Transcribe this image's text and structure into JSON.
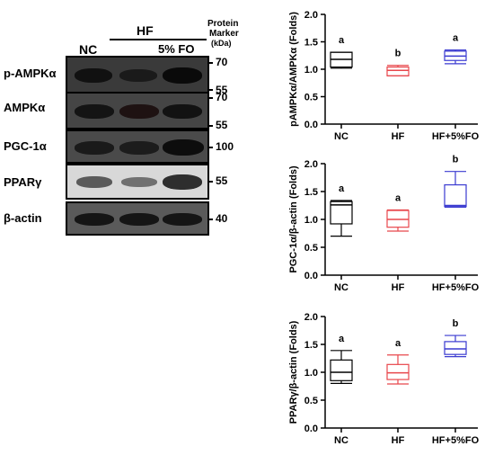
{
  "western_blot": {
    "headers": {
      "nc": "NC",
      "hf": "HF",
      "fo": "5% FO",
      "marker_title_1": "Protein",
      "marker_title_2": "Marker",
      "marker_unit": "(kDa)"
    },
    "rows": [
      {
        "label": "p-AMPKα",
        "markers": [
          "70",
          "55"
        ]
      },
      {
        "label": "AMPKα",
        "markers": [
          "70",
          "55"
        ]
      },
      {
        "label": "PGC-1α",
        "markers": [
          "100"
        ]
      },
      {
        "label": "PPARγ",
        "markers": [
          "55"
        ]
      },
      {
        "label": "β-actin",
        "markers": [
          "40"
        ]
      }
    ]
  },
  "chart_data": [
    {
      "type": "boxplot",
      "ylabel": "pAMPKα/AMPKα (Folds)",
      "ylim": [
        0,
        2.0
      ],
      "yticks": [
        "0.0",
        "0.5",
        "1.0",
        "1.5",
        "2.0"
      ],
      "categories": [
        "NC",
        "HF",
        "HF+5%FO"
      ],
      "colors": [
        "#000000",
        "#e8474c",
        "#3a3ad0"
      ],
      "boxes": [
        {
          "min": 1.02,
          "q1": 1.04,
          "median": 1.18,
          "q3": 1.31,
          "max": 1.31
        },
        {
          "min": 0.88,
          "q1": 0.88,
          "median": 0.98,
          "q3": 1.04,
          "max": 1.07
        },
        {
          "min": 1.1,
          "q1": 1.16,
          "median": 1.24,
          "q3": 1.33,
          "max": 1.35
        }
      ],
      "letters": [
        "a",
        "b",
        "a"
      ]
    },
    {
      "type": "boxplot",
      "ylabel": "PGC-1α/β-actin (Folds)",
      "ylim": [
        0,
        2.0
      ],
      "yticks": [
        "0.0",
        "0.5",
        "1.0",
        "1.5",
        "2.0"
      ],
      "categories": [
        "NC",
        "HF",
        "HF+5%FO"
      ],
      "colors": [
        "#000000",
        "#e8474c",
        "#3a3ad0"
      ],
      "boxes": [
        {
          "min": 0.7,
          "q1": 0.92,
          "median": 1.26,
          "q3": 1.32,
          "max": 1.34
        },
        {
          "min": 0.79,
          "q1": 0.86,
          "median": 1.0,
          "q3": 1.16,
          "max": 1.17
        },
        {
          "min": 1.22,
          "q1": 1.23,
          "median": 1.25,
          "q3": 1.62,
          "max": 1.86
        }
      ],
      "letters": [
        "a",
        "a",
        "b"
      ]
    },
    {
      "type": "boxplot",
      "ylabel": "PPARγ/β-actin (Folds)",
      "ylim": [
        0,
        2.0
      ],
      "yticks": [
        "0.0",
        "0.5",
        "1.0",
        "1.5",
        "2.0"
      ],
      "categories": [
        "NC",
        "HF",
        "HF+5%FO"
      ],
      "colors": [
        "#000000",
        "#e8474c",
        "#3a3ad0"
      ],
      "boxes": [
        {
          "min": 0.8,
          "q1": 0.85,
          "median": 1.0,
          "q3": 1.22,
          "max": 1.39
        },
        {
          "min": 0.79,
          "q1": 0.87,
          "median": 0.99,
          "q3": 1.14,
          "max": 1.31
        },
        {
          "min": 1.28,
          "q1": 1.32,
          "median": 1.42,
          "q3": 1.55,
          "max": 1.66
        }
      ],
      "letters": [
        "a",
        "a",
        "b"
      ]
    }
  ]
}
